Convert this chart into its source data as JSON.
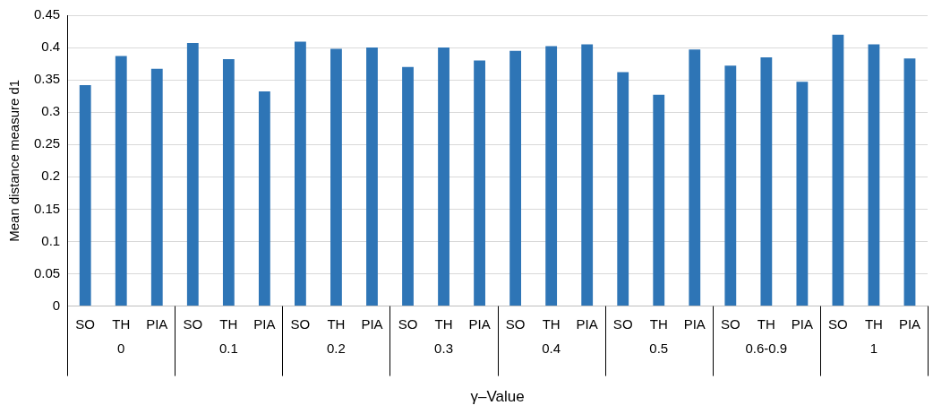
{
  "chart_data": {
    "type": "bar",
    "xlabel": "γ–Value",
    "ylabel": "Mean distance measure d1",
    "categories": [
      "SO",
      "TH",
      "PIA",
      "SO",
      "TH",
      "PIA",
      "SO",
      "TH",
      "PIA",
      "SO",
      "TH",
      "PIA",
      "SO",
      "TH",
      "PIA",
      "SO",
      "TH",
      "PIA",
      "SO",
      "TH",
      "PIA",
      "SO",
      "TH",
      "PIA"
    ],
    "values": [
      0.342,
      0.387,
      0.367,
      0.407,
      0.382,
      0.332,
      0.409,
      0.398,
      0.4,
      0.37,
      0.4,
      0.38,
      0.395,
      0.402,
      0.405,
      0.362,
      0.327,
      0.397,
      0.372,
      0.385,
      0.347,
      0.42,
      0.405,
      0.383
    ],
    "color": "#2e75b6",
    "annotations": [
      "0",
      "0.1",
      "0.2",
      "0.3",
      "0.4",
      "0.5",
      "0.6-0.9",
      "1"
    ],
    "ylim": [
      0,
      0.45
    ],
    "yticks": [
      0,
      0.05,
      0.1,
      0.15,
      0.2,
      0.25,
      0.3,
      0.35,
      0.4,
      0.45
    ],
    "grid": "y",
    "legend": false
  }
}
